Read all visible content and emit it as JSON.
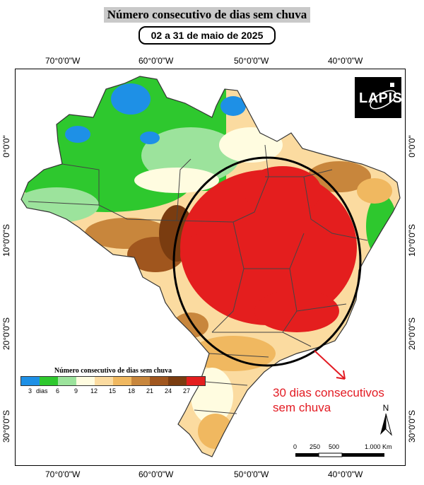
{
  "header": {
    "title": "Número consecutivo de dias sem chuva",
    "period": "02 a 31 de maio de 2025"
  },
  "axes": {
    "longitudes": [
      "70°0'0\"W",
      "60°0'0\"W",
      "50°0'0\"W",
      "40°0'0\"W"
    ],
    "latitudes": [
      "0°0'0\"",
      "10°0'0\"S",
      "20°0'0\"S",
      "30°0'0\"S"
    ]
  },
  "logo": {
    "text": "LAPIS"
  },
  "legend": {
    "title": "Número consecutivo de dias sem chuva",
    "labels": [
      "3",
      "dias",
      "6",
      "9",
      "12",
      "15",
      "18",
      "21",
      "24",
      "27"
    ],
    "colors": [
      "#1e90e6",
      "#2ec82e",
      "#9ce39c",
      "#fffce0",
      "#fbdba0",
      "#f0b860",
      "#c8863c",
      "#a0561e",
      "#7a3c10",
      "#e41e1e"
    ]
  },
  "annotation": {
    "line1": "30 dias consecutivos",
    "line2": "sem chuva",
    "color": "#e31b23"
  },
  "north": {
    "label": "N"
  },
  "scale": {
    "labels": [
      "0",
      "250",
      "500",
      "1.000 Km"
    ]
  }
}
